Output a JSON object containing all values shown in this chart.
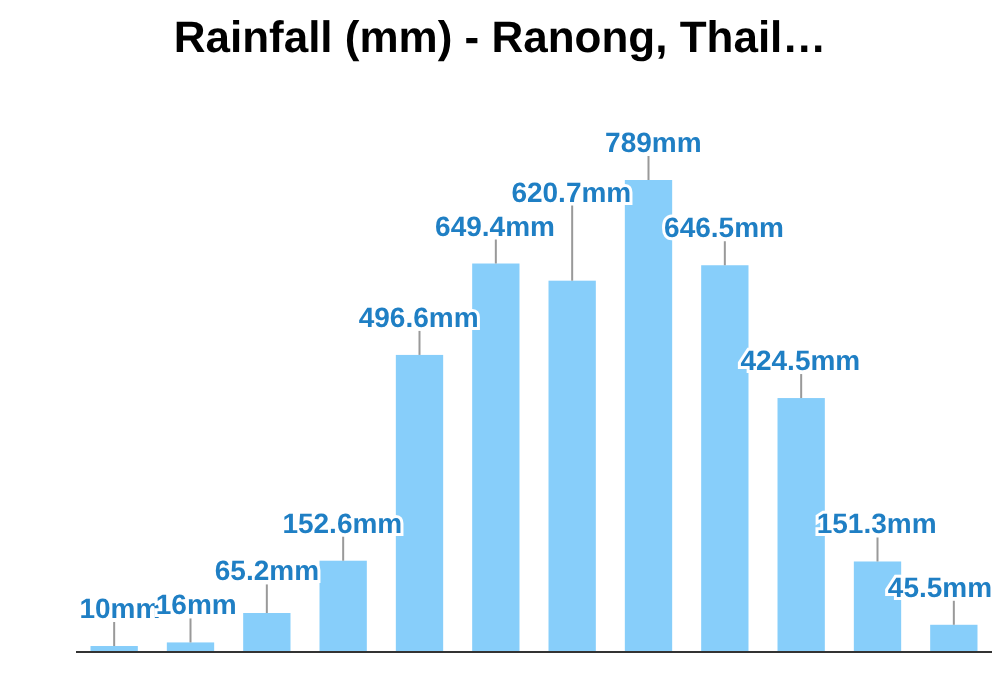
{
  "chart_data": {
    "type": "bar",
    "title": "Rainfall (mm) - Ranong, Thail…",
    "categories": [
      null,
      null,
      null,
      null,
      null,
      null,
      null,
      null,
      null,
      null,
      null,
      null
    ],
    "values": [
      10,
      16,
      65.2,
      152.6,
      496.6,
      649.4,
      620.7,
      789,
      646.5,
      424.5,
      151.3,
      45.5
    ],
    "value_labels": [
      "10mm",
      "16mm",
      "65.2mm",
      "152.6mm",
      "496.6mm",
      "649.4mm",
      "620.7mm",
      "789mm",
      "646.5mm",
      "424.5mm",
      "151.3mm",
      "45.5mm"
    ],
    "color": "#87cefa"
  }
}
